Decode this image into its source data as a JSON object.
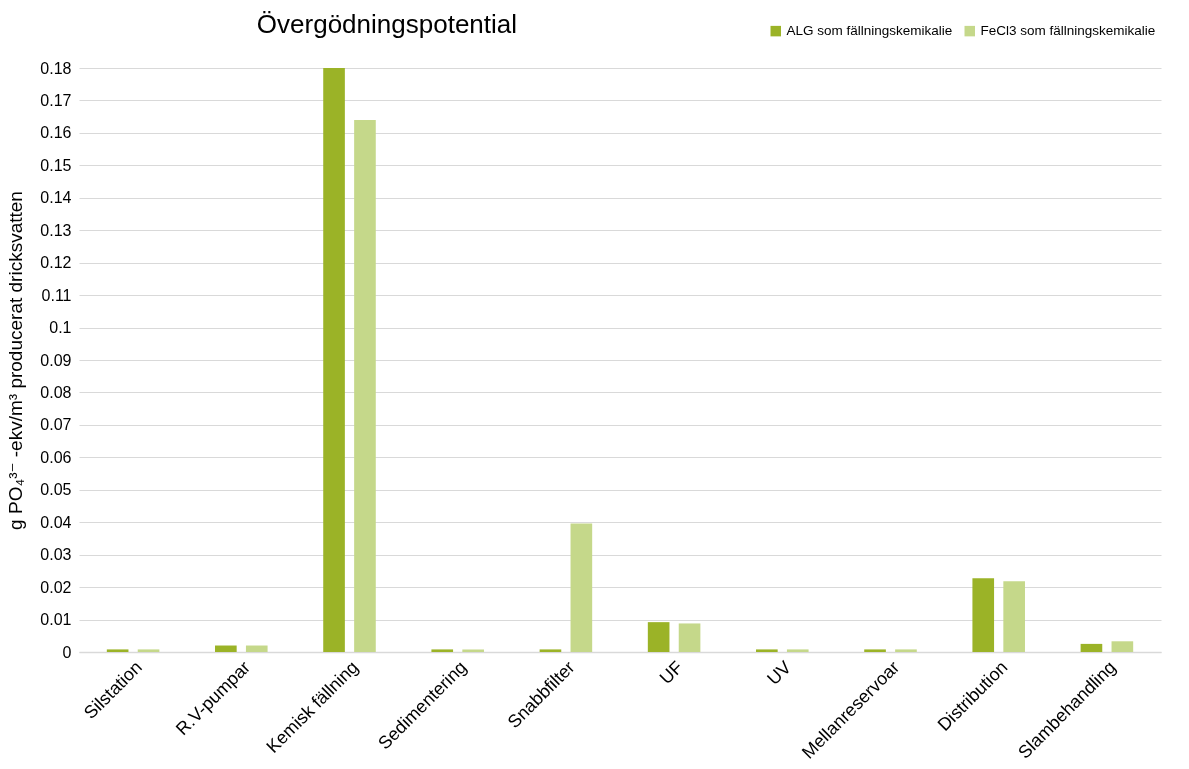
{
  "chart_data": {
    "type": "bar",
    "title": "Övergödningspotential",
    "ylabel": "g PO₄³⁻ -ekv/m³ producerat dricksvatten",
    "categories": [
      "Silstation",
      "R.V-pumpar",
      "Kemisk fällning",
      "Sedimentering",
      "Snabbfilter",
      "UF",
      "UV",
      "Mellanreservoar",
      "Distribution",
      "Slambehandling"
    ],
    "series": [
      {
        "name": "ALG som fällningskemikalie",
        "color": "#9bb327",
        "values": [
          0.0008,
          0.002,
          0.18,
          0.0008,
          0.0008,
          0.0092,
          0.0008,
          0.0008,
          0.0227,
          0.0025
        ]
      },
      {
        "name": "FeCl3 som fällningskemikalie",
        "color": "#c5d88a",
        "values": [
          0.0008,
          0.002,
          0.164,
          0.0008,
          0.0396,
          0.0088,
          0.0008,
          0.0008,
          0.0218,
          0.0033
        ]
      }
    ],
    "ylim": [
      0,
      0.18
    ],
    "yticks": [
      0,
      0.01,
      0.02,
      0.03,
      0.04,
      0.05,
      0.06,
      0.07,
      0.08,
      0.09,
      0.1,
      0.11,
      0.12,
      0.13,
      0.14,
      0.15,
      0.16,
      0.17,
      0.18
    ],
    "grid": "y",
    "legend": "top right"
  }
}
